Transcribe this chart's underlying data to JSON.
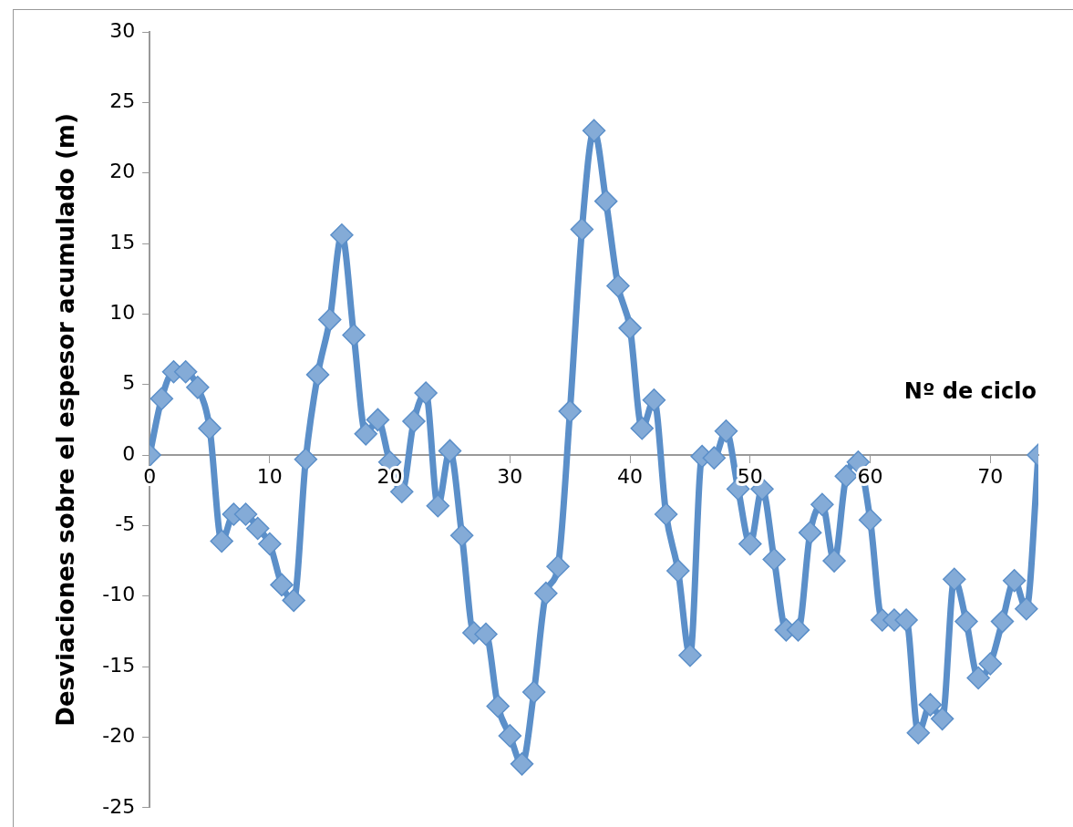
{
  "chart_data": {
    "type": "line",
    "xlabel": "Nº de ciclo",
    "ylabel": "Desviaciones sobre el espesor acumulado (m)",
    "x": [
      0,
      1,
      2,
      3,
      4,
      5,
      6,
      7,
      8,
      9,
      10,
      11,
      12,
      13,
      14,
      15,
      16,
      17,
      18,
      19,
      20,
      21,
      22,
      23,
      24,
      25,
      26,
      27,
      28,
      29,
      30,
      31,
      32,
      33,
      34,
      35,
      36,
      37,
      38,
      39,
      40,
      41,
      42,
      43,
      44,
      45,
      46,
      47,
      48,
      49,
      50,
      51,
      52,
      53,
      54,
      55,
      56,
      57,
      58,
      59,
      60,
      61,
      62,
      63,
      64,
      65,
      66,
      67,
      68,
      69,
      70,
      71,
      72,
      73,
      74
    ],
    "series": [
      {
        "color": "#5b8fc9",
        "values": [
          0,
          4,
          5.9,
          5.9,
          4.8,
          1.9,
          -6.1,
          -4.2,
          -4.2,
          -5.2,
          -6.3,
          -9.2,
          -10.3,
          -0.3,
          5.7,
          9.6,
          15.6,
          8.5,
          1.5,
          2.5,
          -0.5,
          -2.6,
          2.4,
          4.4,
          -3.6,
          0.3,
          -5.7,
          -12.6,
          -12.7,
          -17.8,
          -19.9,
          -21.9,
          -16.8,
          -9.8,
          -7.9,
          3.1,
          16,
          23,
          18,
          12,
          9,
          1.9,
          3.9,
          -4.2,
          -8.2,
          -14.2,
          -0.1,
          -0.2,
          1.7,
          -2.4,
          -6.3,
          -2.4,
          -7.4,
          -12.4,
          -12.4,
          -5.5,
          -3.5,
          -7.5,
          -1.5,
          -0.5,
          -4.6,
          -11.7,
          -11.7,
          -11.7,
          -19.7,
          -17.7,
          -18.7,
          -8.8,
          -11.8,
          -15.8,
          -14.8,
          -11.8,
          -8.9,
          -10.9,
          0
        ]
      }
    ],
    "xlim": [
      0,
      74
    ],
    "xticks": [
      0,
      10,
      20,
      30,
      40,
      50,
      60,
      70
    ],
    "ylim": [
      -25,
      30
    ],
    "yticks": [
      -25,
      -20,
      -15,
      -10,
      -5,
      0,
      5,
      10,
      15,
      20,
      25,
      30
    ],
    "grid": false,
    "legend": false,
    "marker": "diamond",
    "line_style": "solid"
  }
}
